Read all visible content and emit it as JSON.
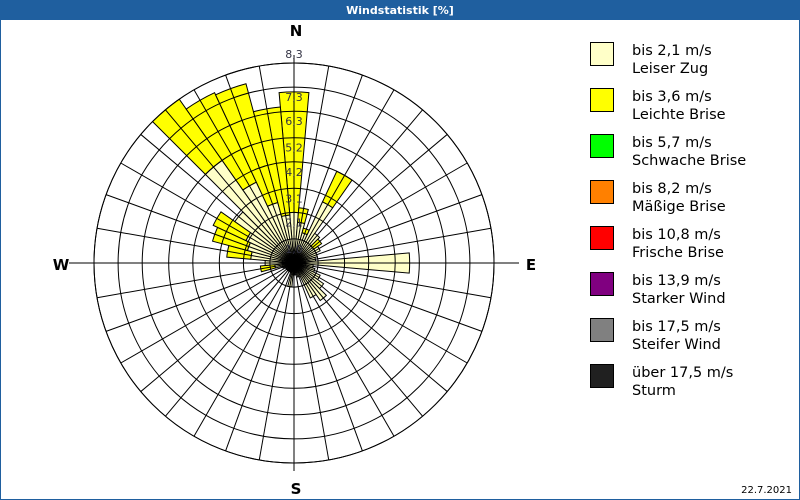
{
  "title": "Windstatistik [%]",
  "date": "22.7.2021",
  "chart_data": {
    "type": "windrose",
    "title": "Windstatistik [%]",
    "directions": {
      "N": "N",
      "E": "E",
      "S": "S",
      "W": "W"
    },
    "ring_labels": [
      "1,0",
      "2,1",
      "3,1",
      "4,2",
      "5,2",
      "6,3",
      "7,3",
      "8,3"
    ],
    "rmax": 8.3,
    "sector_width_deg": 10,
    "angles": [
      0,
      10,
      20,
      30,
      40,
      50,
      60,
      70,
      80,
      90,
      100,
      110,
      120,
      130,
      140,
      150,
      160,
      170,
      180,
      190,
      200,
      210,
      220,
      230,
      240,
      250,
      260,
      270,
      280,
      290,
      300,
      310,
      320,
      330,
      340,
      350
    ],
    "series": [
      {
        "name": "bis 2,1 m/s Leiser Zug",
        "color": "#ffffc8",
        "values": [
          2.1,
          1.7,
          1.3,
          2.8,
          1.5,
          1.0,
          1.2,
          1.0,
          0.9,
          4.8,
          0.8,
          0.9,
          1.2,
          1.5,
          1.9,
          1.6,
          0.6,
          0.4,
          0.5,
          1.0,
          0.4,
          0.4,
          0.4,
          0.4,
          0.4,
          0.5,
          0.8,
          1.2,
          1.8,
          2.0,
          2.2,
          3.0,
          5.2,
          3.7,
          2.6,
          2.0
        ]
      },
      {
        "name": "bis 3,6 m/s Leichte Brise",
        "color": "#ffff00",
        "values": [
          5.0,
          0.6,
          0.2,
          1.4,
          0,
          0.4,
          0,
          0,
          0,
          0,
          0,
          0,
          0,
          0,
          0,
          0,
          0,
          0,
          0,
          0,
          0,
          0,
          0,
          0,
          0,
          0,
          0.6,
          0,
          1.0,
          1.5,
          1.5,
          0,
          3.1,
          4.1,
          5.1,
          4.5
        ]
      }
    ]
  },
  "legend": [
    {
      "line1": "bis 2,1 m/s",
      "line2": "Leiser Zug",
      "color": "#ffffc8"
    },
    {
      "line1": "bis 3,6 m/s",
      "line2": "Leichte Brise",
      "color": "#ffff00"
    },
    {
      "line1": "bis 5,7 m/s",
      "line2": "Schwache Brise",
      "color": "#00ff00"
    },
    {
      "line1": "bis 8,2 m/s",
      "line2": "Mäßige Brise",
      "color": "#ff8000"
    },
    {
      "line1": "bis 10,8 m/s",
      "line2": "Frische Brise",
      "color": "#ff0000"
    },
    {
      "line1": "bis 13,9 m/s",
      "line2": "Starker Wind",
      "color": "#800080"
    },
    {
      "line1": "bis 17,5 m/s",
      "line2": "Steifer Wind",
      "color": "#808080"
    },
    {
      "line1": "über 17,5 m/s",
      "line2": "Sturm",
      "color": "#202020"
    }
  ]
}
